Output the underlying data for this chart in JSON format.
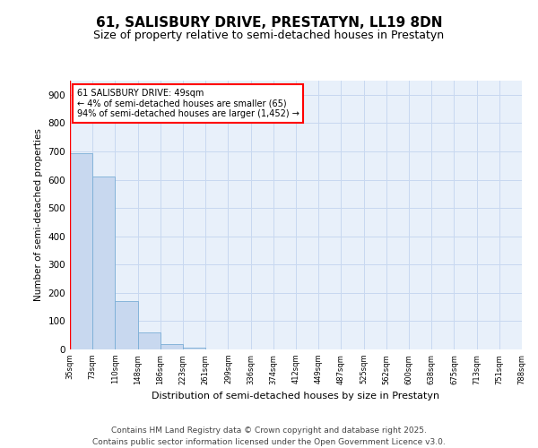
{
  "title1": "61, SALISBURY DRIVE, PRESTATYN, LL19 8DN",
  "title2": "Size of property relative to semi-detached houses in Prestatyn",
  "xlabel": "Distribution of semi-detached houses by size in Prestatyn",
  "ylabel": "Number of semi-detached properties",
  "bar_values": [
    693,
    610,
    170,
    60,
    18,
    5,
    0,
    0,
    0,
    0,
    0,
    0,
    0,
    0,
    0,
    0,
    0,
    0,
    0,
    0
  ],
  "bar_labels": [
    "35sqm",
    "73sqm",
    "110sqm",
    "148sqm",
    "186sqm",
    "223sqm",
    "261sqm",
    "299sqm",
    "336sqm",
    "374sqm",
    "412sqm",
    "449sqm",
    "487sqm",
    "525sqm",
    "562sqm",
    "600sqm",
    "638sqm",
    "675sqm",
    "713sqm",
    "751sqm",
    "788sqm"
  ],
  "bar_color": "#c8d8ef",
  "bar_edge_color": "#7aaed6",
  "grid_color": "#c8d8f0",
  "background_color": "#e8f0fa",
  "annotation_text": "61 SALISBURY DRIVE: 49sqm\n← 4% of semi-detached houses are smaller (65)\n94% of semi-detached houses are larger (1,452) →",
  "annotation_box_color": "white",
  "annotation_border_color": "red",
  "property_line_x": 0.5,
  "ylim": [
    0,
    950
  ],
  "yticks": [
    0,
    100,
    200,
    300,
    400,
    500,
    600,
    700,
    800,
    900
  ],
  "footer_text": "Contains HM Land Registry data © Crown copyright and database right 2025.\nContains public sector information licensed under the Open Government Licence v3.0.",
  "title_fontsize": 11,
  "subtitle_fontsize": 9,
  "footer_fontsize": 6.5
}
